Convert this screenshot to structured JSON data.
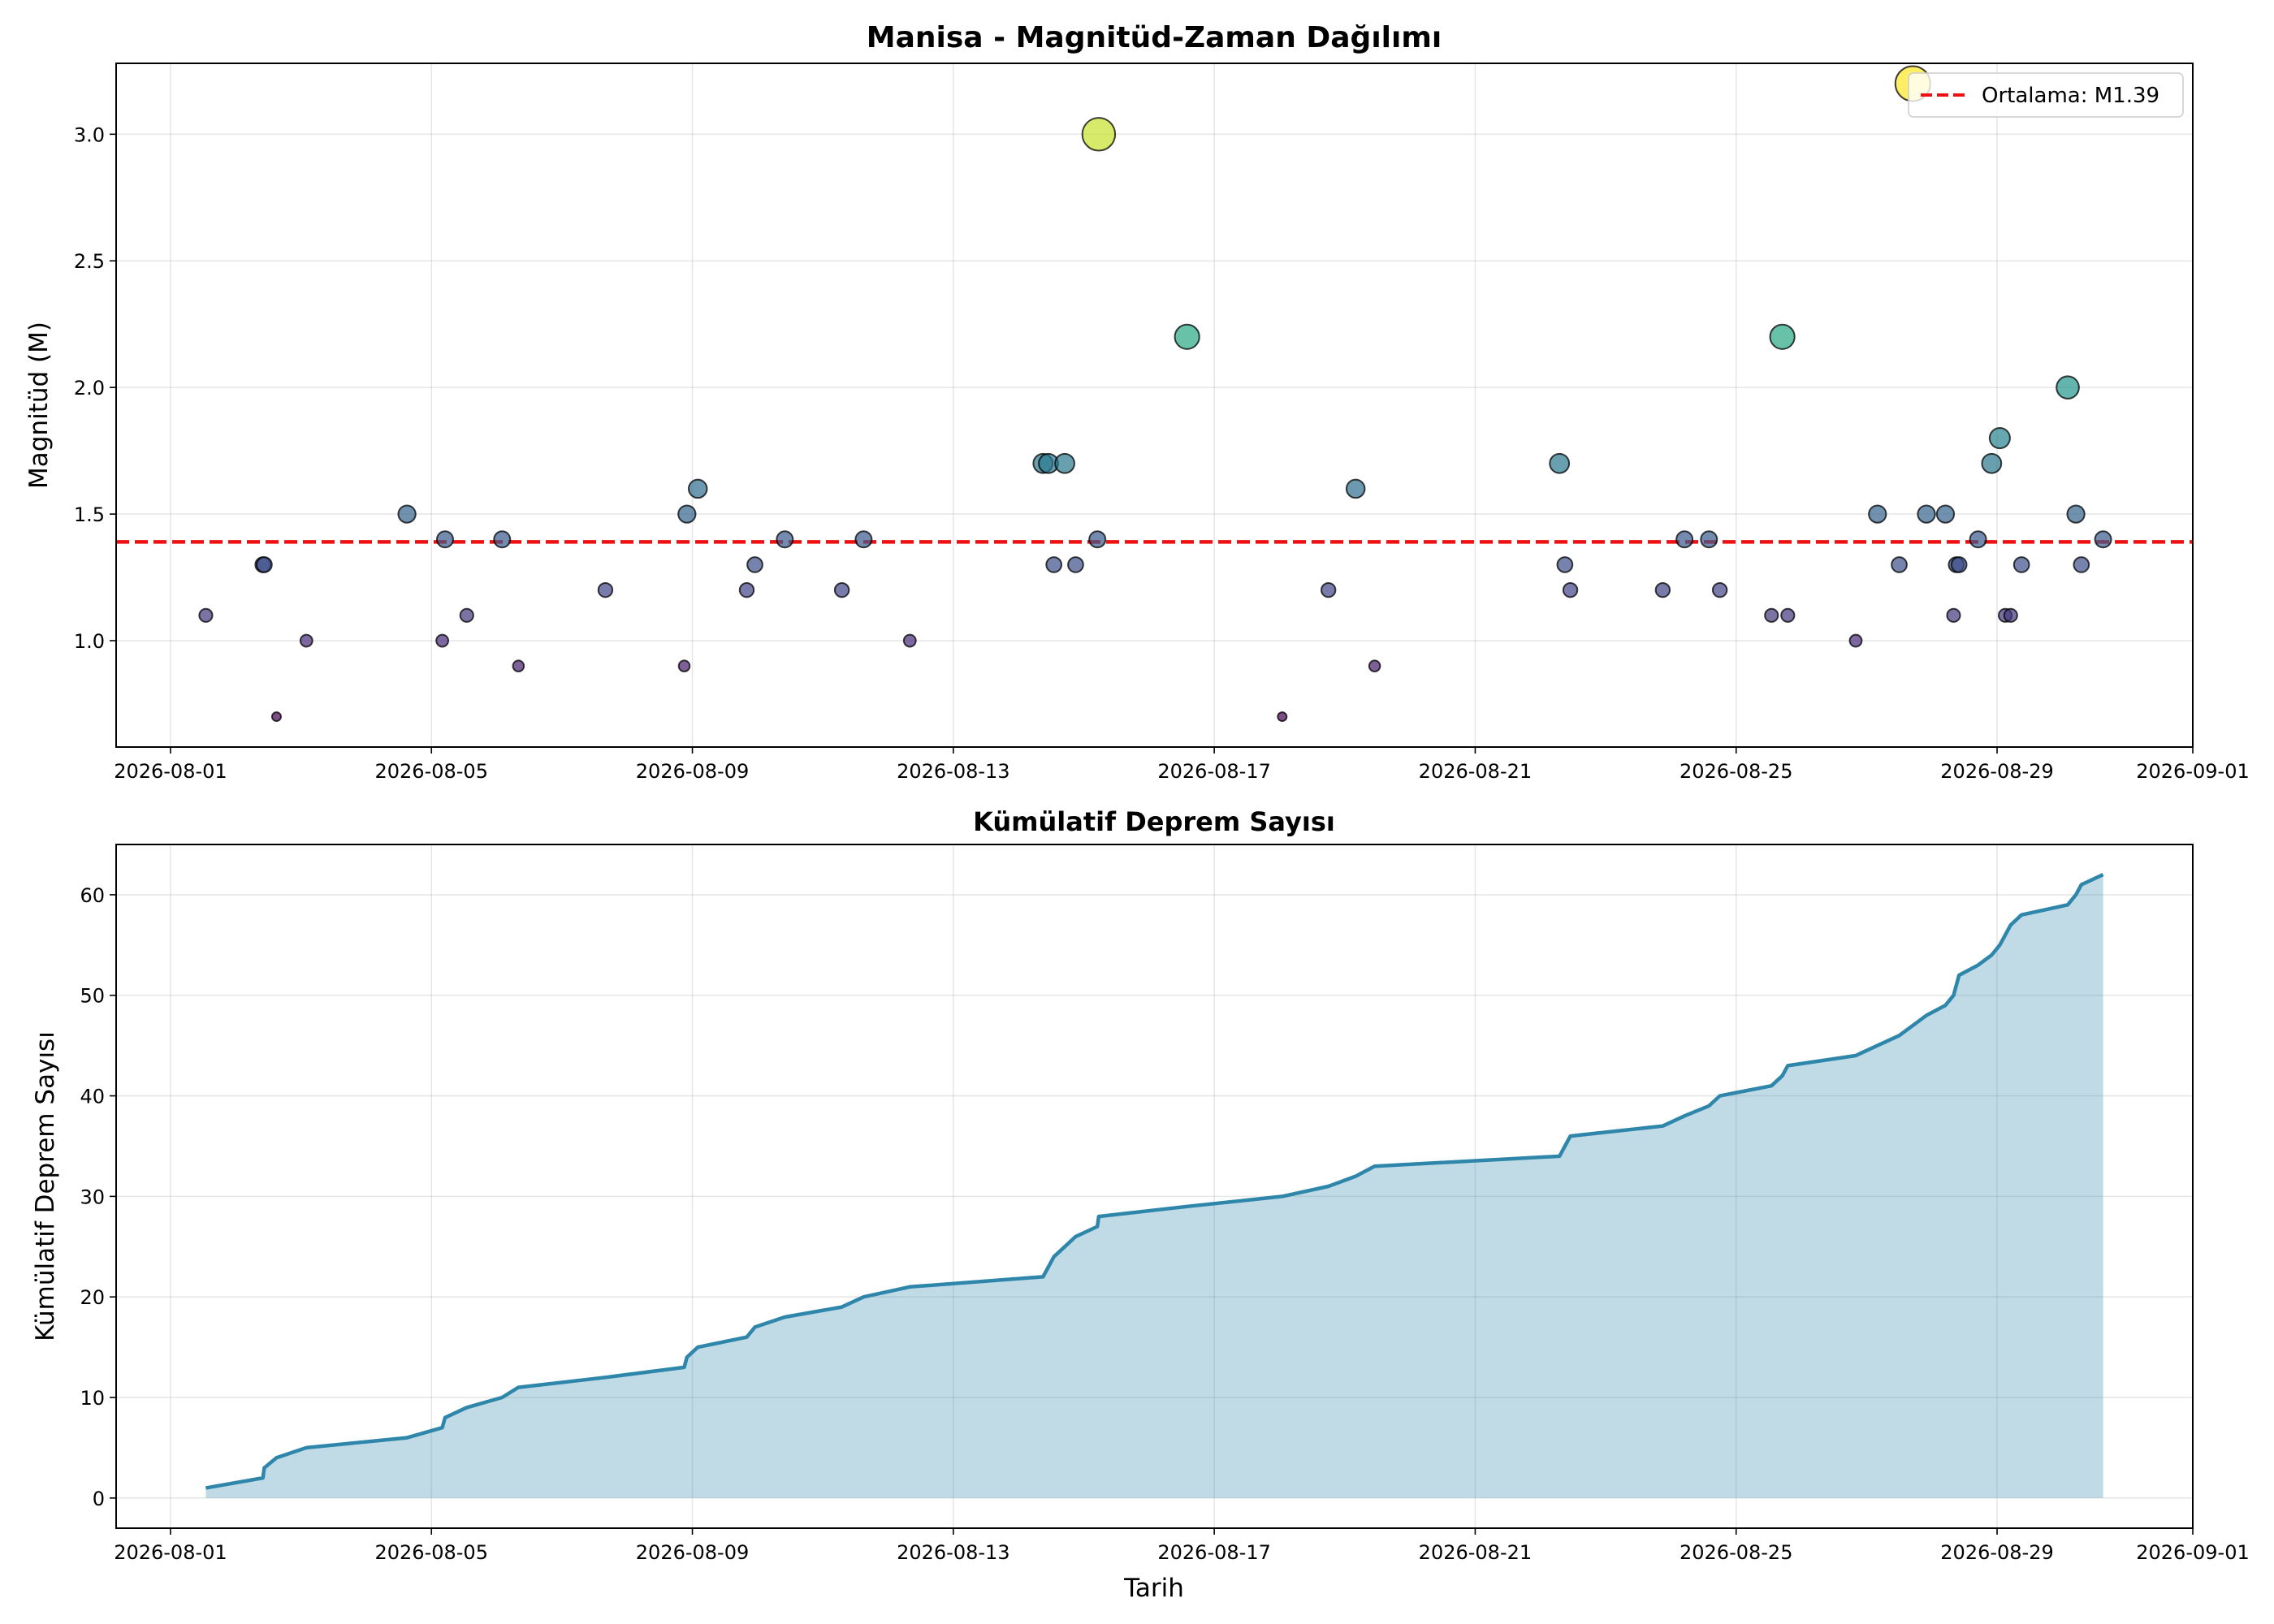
{
  "chart_data": [
    {
      "type": "scatter",
      "title": "Manisa - Magnitüd-Zaman Dağılımı",
      "xlabel": "",
      "ylabel": "Magnitüd (M)",
      "x_ticks": [
        "2026-08-01",
        "2026-08-05",
        "2026-08-09",
        "2026-08-13",
        "2026-08-17",
        "2026-08-21",
        "2026-08-25",
        "2026-08-29",
        "2026-09-01"
      ],
      "y_ticks": [
        "1.0",
        "1.5",
        "2.0",
        "2.5",
        "3.0"
      ],
      "xlim": [
        "2026-07-31 04:00",
        "2026-09-01 00:00"
      ],
      "ylim": [
        0.58,
        3.28
      ],
      "grid": true,
      "legend_position": "top-right",
      "mean_line": {
        "label": "Ortalama: M1.39",
        "value": 1.39,
        "color": "#ee1111",
        "style": "dashed"
      },
      "colormap": "viridis",
      "points": [
        {
          "x": "2026-08-01 13:00",
          "y": 1.1
        },
        {
          "x": "2026-08-02 10:00",
          "y": 1.3
        },
        {
          "x": "2026-08-02 10:30",
          "y": 1.3
        },
        {
          "x": "2026-08-02 15:00",
          "y": 0.7
        },
        {
          "x": "2026-08-03 02:00",
          "y": 1.0
        },
        {
          "x": "2026-08-04 15:00",
          "y": 1.5
        },
        {
          "x": "2026-08-05 04:00",
          "y": 1.0
        },
        {
          "x": "2026-08-05 05:00",
          "y": 1.4
        },
        {
          "x": "2026-08-05 13:00",
          "y": 1.1
        },
        {
          "x": "2026-08-06 02:00",
          "y": 1.4
        },
        {
          "x": "2026-08-06 08:00",
          "y": 0.9
        },
        {
          "x": "2026-08-07 16:00",
          "y": 1.2
        },
        {
          "x": "2026-08-08 21:00",
          "y": 0.9
        },
        {
          "x": "2026-08-08 22:00",
          "y": 1.5
        },
        {
          "x": "2026-08-09 02:00",
          "y": 1.6
        },
        {
          "x": "2026-08-09 20:00",
          "y": 1.2
        },
        {
          "x": "2026-08-09 23:00",
          "y": 1.3
        },
        {
          "x": "2026-08-10 10:00",
          "y": 1.4
        },
        {
          "x": "2026-08-11 07:00",
          "y": 1.2
        },
        {
          "x": "2026-08-11 15:00",
          "y": 1.4
        },
        {
          "x": "2026-08-12 08:00",
          "y": 1.0
        },
        {
          "x": "2026-08-14 09:00",
          "y": 1.7
        },
        {
          "x": "2026-08-14 11:00",
          "y": 1.7
        },
        {
          "x": "2026-08-14 13:00",
          "y": 1.3
        },
        {
          "x": "2026-08-14 17:00",
          "y": 1.7
        },
        {
          "x": "2026-08-14 21:00",
          "y": 1.3
        },
        {
          "x": "2026-08-15 05:00",
          "y": 1.4
        },
        {
          "x": "2026-08-15 05:30",
          "y": 3.0
        },
        {
          "x": "2026-08-16 14:00",
          "y": 2.2
        },
        {
          "x": "2026-08-18 01:00",
          "y": 0.7
        },
        {
          "x": "2026-08-18 18:00",
          "y": 1.2
        },
        {
          "x": "2026-08-19 04:00",
          "y": 1.6
        },
        {
          "x": "2026-08-19 11:00",
          "y": 0.9
        },
        {
          "x": "2026-08-22 07:00",
          "y": 1.7
        },
        {
          "x": "2026-08-22 09:00",
          "y": 1.3
        },
        {
          "x": "2026-08-22 11:00",
          "y": 1.2
        },
        {
          "x": "2026-08-23 21:00",
          "y": 1.2
        },
        {
          "x": "2026-08-24 05:00",
          "y": 1.4
        },
        {
          "x": "2026-08-24 14:00",
          "y": 1.4
        },
        {
          "x": "2026-08-24 18:00",
          "y": 1.2
        },
        {
          "x": "2026-08-25 13:00",
          "y": 1.1
        },
        {
          "x": "2026-08-25 17:00",
          "y": 2.2
        },
        {
          "x": "2026-08-25 19:00",
          "y": 1.1
        },
        {
          "x": "2026-08-26 20:00",
          "y": 1.0
        },
        {
          "x": "2026-08-27 04:00",
          "y": 1.5
        },
        {
          "x": "2026-08-27 12:00",
          "y": 1.3
        },
        {
          "x": "2026-08-27 17:00",
          "y": 3.2
        },
        {
          "x": "2026-08-27 22:00",
          "y": 1.5
        },
        {
          "x": "2026-08-28 05:00",
          "y": 1.5
        },
        {
          "x": "2026-08-28 08:00",
          "y": 1.1
        },
        {
          "x": "2026-08-28 09:00",
          "y": 1.3
        },
        {
          "x": "2026-08-28 10:00",
          "y": 1.3
        },
        {
          "x": "2026-08-28 17:00",
          "y": 1.4
        },
        {
          "x": "2026-08-28 22:00",
          "y": 1.7
        },
        {
          "x": "2026-08-29 01:00",
          "y": 1.8
        },
        {
          "x": "2026-08-29 03:00",
          "y": 1.1
        },
        {
          "x": "2026-08-29 05:00",
          "y": 1.1
        },
        {
          "x": "2026-08-29 09:00",
          "y": 1.3
        },
        {
          "x": "2026-08-30 02:00",
          "y": 2.0
        },
        {
          "x": "2026-08-30 05:00",
          "y": 1.5
        },
        {
          "x": "2026-08-30 07:00",
          "y": 1.3
        },
        {
          "x": "2026-08-30 15:00",
          "y": 1.4
        }
      ]
    },
    {
      "type": "area",
      "title": "Kümülatif Deprem Sayısı",
      "xlabel": "Tarih",
      "ylabel": "Kümülatif Deprem Sayısı",
      "x_ticks": [
        "2026-08-01",
        "2026-08-05",
        "2026-08-09",
        "2026-08-13",
        "2026-08-17",
        "2026-08-21",
        "2026-08-25",
        "2026-08-29",
        "2026-09-01"
      ],
      "y_ticks": [
        "0",
        "10",
        "20",
        "30",
        "40",
        "50",
        "60"
      ],
      "xlim": [
        "2026-07-31 04:00",
        "2026-09-01 00:00"
      ],
      "ylim": [
        -3,
        65
      ],
      "grid": true,
      "line_color": "#2e86ab",
      "fill_color": "#2e86ab",
      "fill_opacity": 0.3,
      "cumulative_from": "chart_data.0.points"
    }
  ]
}
